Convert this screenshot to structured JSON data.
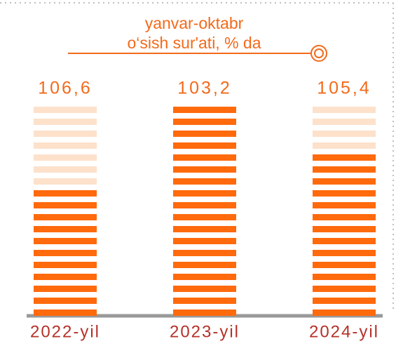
{
  "chart_data": {
    "type": "bar",
    "title": [
      "yanvar-oktabr",
      "o‘sish sur'ati, % da"
    ],
    "categories": [
      "2022-yil",
      "2023-yil",
      "2024-yil"
    ],
    "values": [
      106.6,
      103.2,
      105.4
    ],
    "value_labels": [
      "106,6",
      "103,2",
      "105,4"
    ],
    "color": "#ff6a0d"
  }
}
